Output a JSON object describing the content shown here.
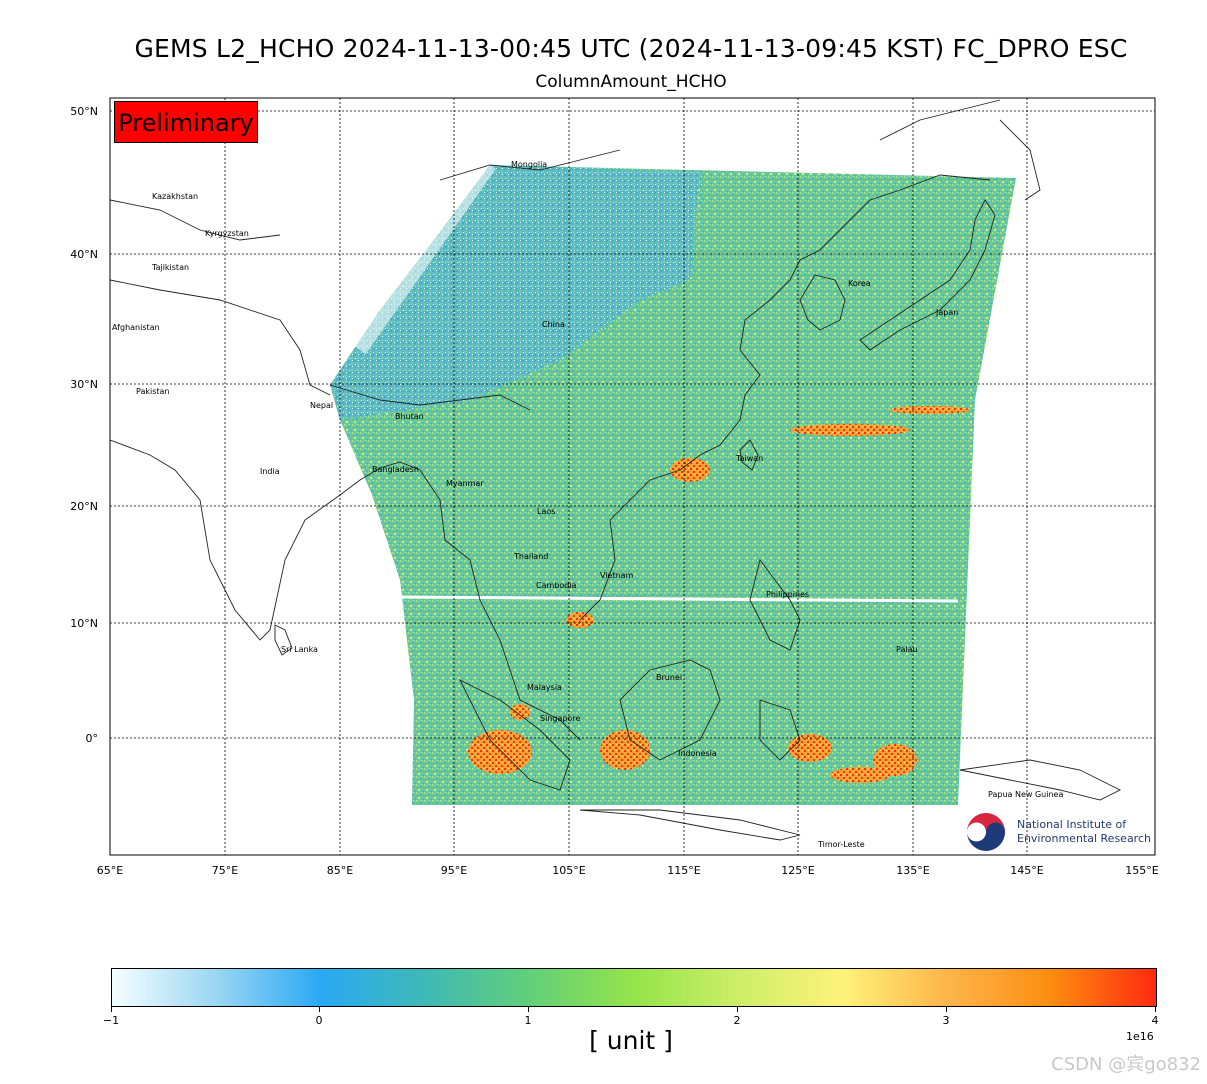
{
  "title": "GEMS L2_HCHO 2024-11-13-00:45 UTC (2024-11-13-09:45 KST)  FC_DPRO ESC",
  "subtitle": "ColumnAmount_HCHO",
  "badge": "Preliminary",
  "lat_labels": [
    "50°N",
    "40°N",
    "30°N",
    "20°N",
    "10°N",
    "0°"
  ],
  "lon_labels": [
    "65°E",
    "75°E",
    "85°E",
    "95°E",
    "105°E",
    "115°E",
    "125°E",
    "135°E",
    "145°E",
    "155°E"
  ],
  "countries": [
    "Kazakhstan",
    "Kyrgyzstan",
    "Tajikistan",
    "Afghanistan",
    "Pakistan",
    "Mongolia",
    "China",
    "Korea",
    "Japan",
    "Nepal",
    "Bhutan",
    "India",
    "Bangladesh",
    "Myanmar",
    "Laos",
    "Taiwan",
    "Thailand",
    "Cambodia",
    "Vietnam",
    "Philippines",
    "Sri Lanka",
    "Palau",
    "Brunei",
    "Malaysia",
    "Singapore",
    "Indonesia",
    "Papua New Guinea",
    "Timor-Leste"
  ],
  "logo": {
    "line1": "National Institute of",
    "line2": "Environmental Research"
  },
  "colorbar": {
    "tick_labels": [
      "−1",
      "0",
      "1",
      "2",
      "3",
      "4"
    ],
    "exponent": "1e16",
    "unit_label": "[ unit ]"
  },
  "watermark": "CSDN @宾go832",
  "colors": {
    "badge": "#ff0000",
    "logo_text": "#223a6e"
  }
}
